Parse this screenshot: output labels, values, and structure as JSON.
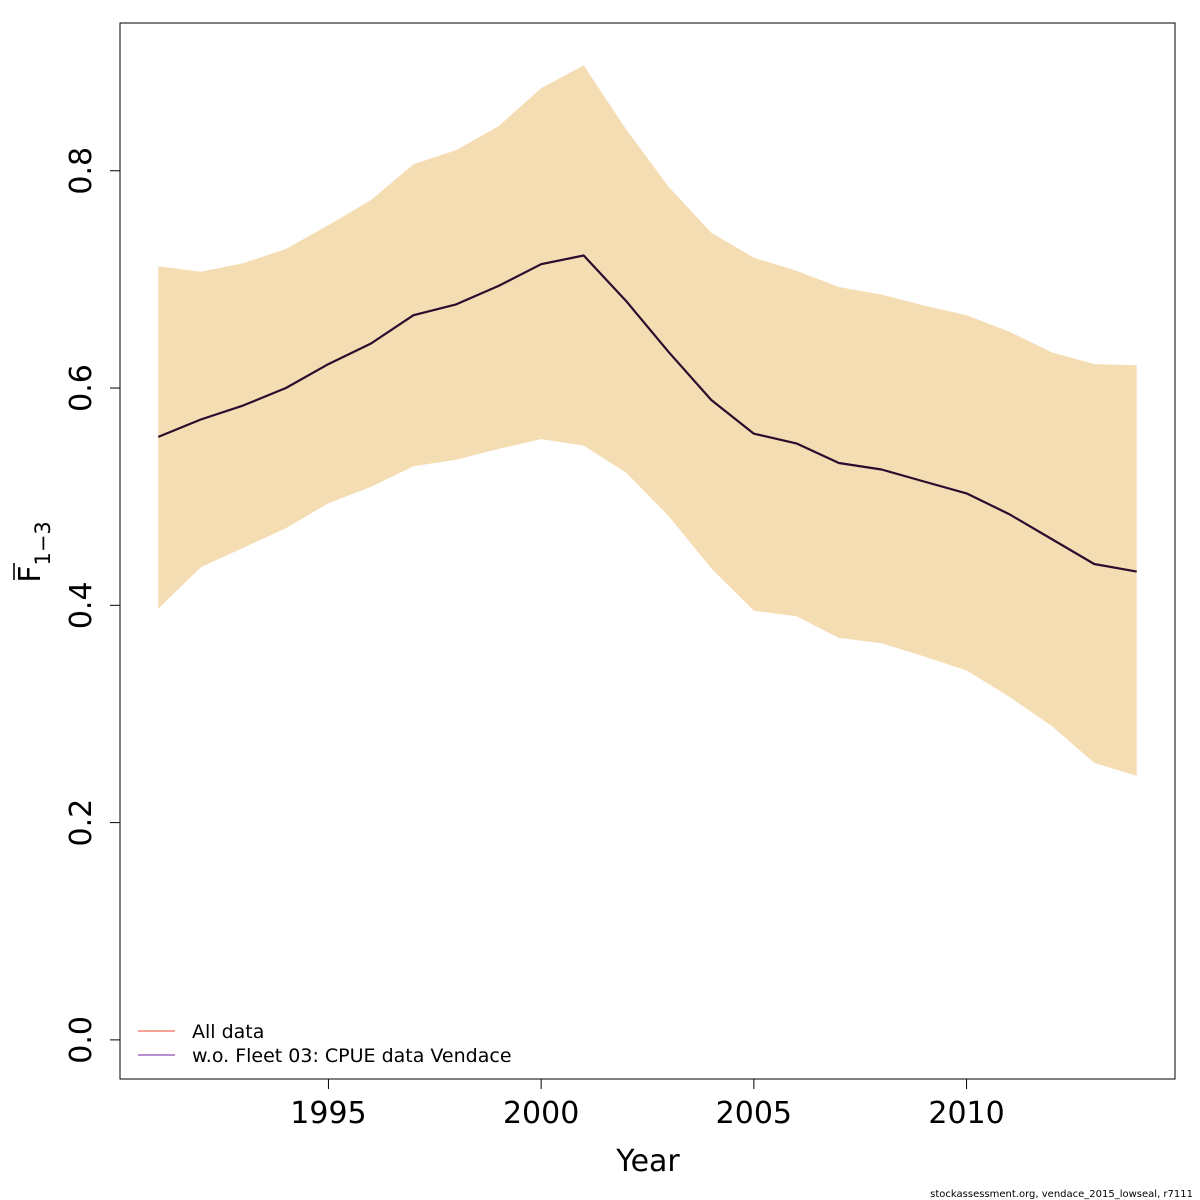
{
  "chart_data": {
    "type": "line",
    "xlabel": "Year",
    "ylabel": {
      "base": "F",
      "subscript": "1−3"
    },
    "xlim": [
      1990.1,
      2014.9
    ],
    "ylim": [
      -0.036,
      0.936
    ],
    "x_ticks": [
      1995,
      2000,
      2005,
      2010
    ],
    "x_tick_labels": [
      "1995",
      "2000",
      "2005",
      "2010"
    ],
    "y_ticks": [
      0.0,
      0.2,
      0.4,
      0.6,
      0.8
    ],
    "y_tick_labels": [
      "0.0",
      "0.2",
      "0.4",
      "0.6",
      "0.8"
    ],
    "grid": false,
    "legend": {
      "position": "bottom-left",
      "entries": [
        {
          "label": "All data",
          "color": "#f4a196"
        },
        {
          "label": "w.o. Fleet 03:  CPUE data Vendace",
          "color": "#b98fcf"
        }
      ]
    },
    "x": [
      1991,
      1992,
      1993,
      1994,
      1995,
      1996,
      1997,
      1998,
      1999,
      2000,
      2001,
      2002,
      2003,
      2004,
      2005,
      2006,
      2007,
      2008,
      2009,
      2010,
      2011,
      2012,
      2013,
      2014
    ],
    "series": [
      {
        "values": [
          0.555,
          0.571,
          0.584,
          0.6,
          0.622,
          0.641,
          0.667,
          0.677,
          0.694,
          0.714,
          0.722,
          0.68,
          0.633,
          0.589,
          0.558,
          0.549,
          0.531,
          0.525,
          0.514,
          0.503,
          0.484,
          0.461,
          0.438,
          0.431
        ],
        "lower": [
          0.397,
          0.435,
          0.453,
          0.471,
          0.494,
          0.509,
          0.528,
          0.534,
          0.544,
          0.553,
          0.547,
          0.522,
          0.482,
          0.434,
          0.395,
          0.39,
          0.37,
          0.365,
          0.353,
          0.34,
          0.316,
          0.289,
          0.255,
          0.243
        ],
        "upper": [
          0.712,
          0.707,
          0.715,
          0.728,
          0.75,
          0.773,
          0.806,
          0.819,
          0.841,
          0.876,
          0.897,
          0.838,
          0.785,
          0.743,
          0.72,
          0.708,
          0.693,
          0.686,
          0.676,
          0.667,
          0.652,
          0.633,
          0.622,
          0.621
        ],
        "color": "#2a0c2e",
        "band_color": "#f5ddb3"
      }
    ]
  },
  "footer": "stockassessment.org, vendace_2015_lowseal, r7111"
}
